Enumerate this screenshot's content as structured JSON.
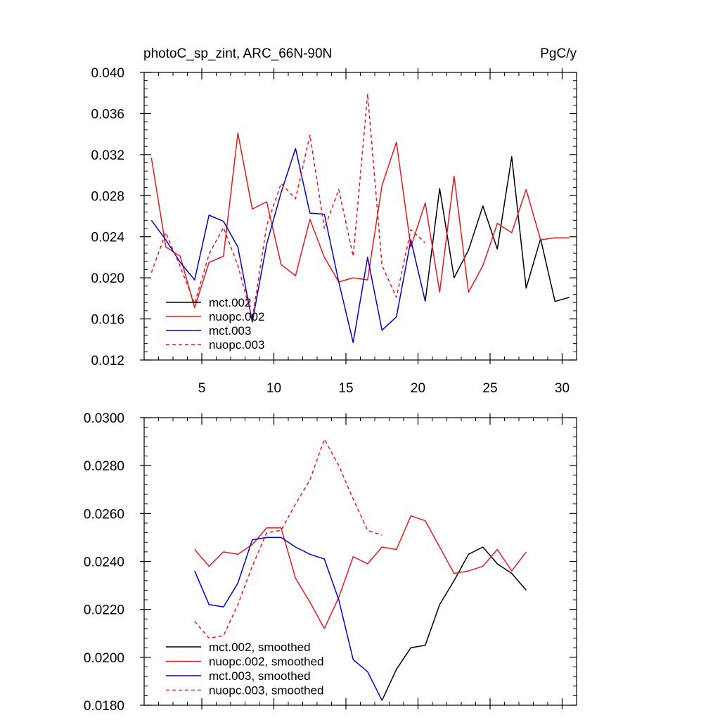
{
  "chart_data": [
    {
      "type": "line",
      "title": "photoC_sp_zint, ARC_66N-90N",
      "title_right": "PgC/y",
      "xlim": [
        1,
        31
      ],
      "ylim": [
        0.012,
        0.04
      ],
      "x_ticks": [
        5,
        10,
        15,
        20,
        25,
        30
      ],
      "x_tick_labels": [
        "5",
        "10",
        "15",
        "20",
        "25",
        "30"
      ],
      "y_ticks": [
        0.012,
        0.016,
        0.02,
        0.024,
        0.028,
        0.032,
        0.036,
        0.04
      ],
      "y_tick_labels": [
        "0.012",
        "0.016",
        "0.020",
        "0.024",
        "0.028",
        "0.032",
        "0.036",
        "0.040"
      ],
      "legend_position": "bottom-left",
      "series": [
        {
          "name": "mct.002",
          "color": "#000000",
          "dash": "solid",
          "x": [
            20.5,
            21.5,
            22.5,
            23.5,
            24.5,
            25.5,
            26.5,
            27.5,
            28.5,
            29.5,
            30.5
          ],
          "y": [
            0.0177,
            0.0287,
            0.02,
            0.0227,
            0.027,
            0.0228,
            0.0318,
            0.019,
            0.0238,
            0.0177,
            0.0181
          ]
        },
        {
          "name": "nuopc.002",
          "color": "#e41a1c",
          "dash": "solid",
          "x": [
            1.5,
            2.5,
            3.5,
            4.5,
            5.5,
            6.5,
            7.5,
            8.5,
            9.5,
            10.5,
            11.5,
            12.5,
            13.5,
            14.5,
            15.5,
            16.5,
            17.5,
            18.5,
            19.5,
            20.5,
            21.5,
            22.5,
            23.5,
            24.5,
            25.5,
            26.5,
            27.5,
            28.5,
            29.5,
            30.5
          ],
          "y": [
            0.0317,
            0.023,
            0.0221,
            0.0171,
            0.0215,
            0.0221,
            0.0341,
            0.0267,
            0.0274,
            0.0213,
            0.0202,
            0.0257,
            0.022,
            0.0196,
            0.02,
            0.0198,
            0.029,
            0.0332,
            0.023,
            0.0273,
            0.0186,
            0.0299,
            0.0186,
            0.0212,
            0.0253,
            0.0244,
            0.0286,
            0.0237,
            0.0239,
            0.0239
          ]
        },
        {
          "name": "mct.003",
          "color": "#0000cc",
          "dash": "solid",
          "x": [
            1.5,
            2.5,
            3.5,
            4.5,
            5.5,
            6.5,
            7.5,
            8.5,
            9.5,
            10.5,
            11.5,
            12.5,
            13.5,
            14.5,
            15.5,
            16.5,
            17.5,
            18.5,
            19.5,
            20.5
          ],
          "y": [
            0.0256,
            0.0237,
            0.0215,
            0.0198,
            0.0261,
            0.0255,
            0.023,
            0.0157,
            0.0233,
            0.0283,
            0.0326,
            0.0263,
            0.0262,
            0.0196,
            0.0137,
            0.022,
            0.0149,
            0.0162,
            0.0237,
            0.0177
          ]
        },
        {
          "name": "nuopc.003",
          "color": "#e41a1c",
          "dash": "dashed",
          "x": [
            1.5,
            2.5,
            3.5,
            4.5,
            5.5,
            6.5,
            7.5,
            8.5,
            9.5,
            10.5,
            11.5,
            12.5,
            13.5,
            14.5,
            15.5,
            16.5,
            17.5,
            18.5,
            19.5,
            20.5
          ],
          "y": [
            0.0205,
            0.0244,
            0.0211,
            0.0175,
            0.0223,
            0.0249,
            0.0212,
            0.016,
            0.0251,
            0.0292,
            0.0277,
            0.0339,
            0.0248,
            0.0286,
            0.0221,
            0.0379,
            0.0212,
            0.0181,
            0.0247,
            0.0234
          ]
        }
      ]
    },
    {
      "type": "line",
      "title": "",
      "xlim": [
        1,
        31
      ],
      "ylim": [
        0.018,
        0.03
      ],
      "x_ticks": [
        5,
        10,
        15,
        20,
        25,
        30
      ],
      "x_tick_labels": [],
      "y_ticks": [
        0.018,
        0.02,
        0.022,
        0.024,
        0.026,
        0.028,
        0.03
      ],
      "y_tick_labels": [
        "0.0180",
        "0.0200",
        "0.0220",
        "0.0240",
        "0.0260",
        "0.0280",
        "0.0300"
      ],
      "legend_position": "bottom-left",
      "series": [
        {
          "name": "mct.002, smoothed",
          "color": "#000000",
          "dash": "solid",
          "x": [
            17.5,
            18.5,
            19.5,
            20.5,
            21.5,
            22.5,
            23.5,
            24.5,
            25.5,
            26.5,
            27.5
          ],
          "y": [
            0.0182,
            0.0195,
            0.0204,
            0.0205,
            0.0222,
            0.0232,
            0.0243,
            0.0246,
            0.0239,
            0.0235,
            0.0228
          ]
        },
        {
          "name": "nuopc.002, smoothed",
          "color": "#e41a1c",
          "dash": "solid",
          "x": [
            4.5,
            5.5,
            6.5,
            7.5,
            8.5,
            9.5,
            10.5,
            11.5,
            12.5,
            13.5,
            14.5,
            15.5,
            16.5,
            17.5,
            18.5,
            19.5,
            20.5,
            21.5,
            22.5,
            23.5,
            24.5,
            25.5,
            26.5,
            27.5
          ],
          "y": [
            0.0245,
            0.0238,
            0.0244,
            0.0243,
            0.0247,
            0.0254,
            0.0254,
            0.0233,
            0.0223,
            0.0212,
            0.0225,
            0.0242,
            0.0239,
            0.0246,
            0.0245,
            0.0259,
            0.0257,
            0.0246,
            0.0235,
            0.0236,
            0.0238,
            0.0245,
            0.0236,
            0.0244
          ]
        },
        {
          "name": "mct.003, smoothed",
          "color": "#0000cc",
          "dash": "solid",
          "x": [
            4.5,
            5.5,
            6.5,
            7.5,
            8.5,
            9.5,
            10.5,
            11.5,
            12.5,
            13.5,
            14.5,
            15.5,
            16.5,
            17.5
          ],
          "y": [
            0.0236,
            0.0222,
            0.0221,
            0.0231,
            0.0249,
            0.025,
            0.025,
            0.0246,
            0.0243,
            0.0241,
            0.0224,
            0.0199,
            0.0194,
            0.0182
          ]
        },
        {
          "name": "nuopc.003, smoothed",
          "color": "#e41a1c",
          "dash": "dashed",
          "x": [
            4.5,
            5.5,
            6.5,
            7.5,
            8.5,
            9.5,
            10.5,
            11.5,
            12.5,
            13.5,
            14.5,
            15.5,
            16.5,
            17.5
          ],
          "y": [
            0.0215,
            0.0208,
            0.0209,
            0.0222,
            0.0238,
            0.0252,
            0.0253,
            0.0264,
            0.0274,
            0.0291,
            0.028,
            0.0266,
            0.0253,
            0.0251
          ]
        }
      ]
    }
  ]
}
